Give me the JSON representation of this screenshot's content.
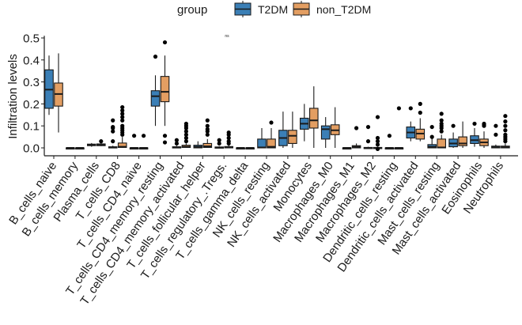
{
  "chart_data": {
    "type": "boxplot",
    "title": "",
    "xlabel": "",
    "ylabel": "Infiltration levels",
    "ylim": [
      -0.03,
      0.51
    ],
    "yticks": [
      0.0,
      0.1,
      0.2,
      0.3,
      0.4,
      0.5
    ],
    "ytick_labels": [
      "0.0",
      "0.1",
      "0.2",
      "0.3",
      "0.4",
      "0.5"
    ],
    "grid": false,
    "legend": {
      "title": "group",
      "placement": "top",
      "entries": [
        {
          "name": "T2DM",
          "color": "#3B7FB6"
        },
        {
          "name": "non_T2DM",
          "color": "#E39E62"
        }
      ]
    },
    "annotation": "ns",
    "categories": [
      "B_cells_naive",
      "B_cells_memory",
      "Plasma_cells",
      "T_cells_CD8",
      "T_cells_CD4_naive",
      "T_cells_CD4_memory_resting",
      "T_cells_CD4_memory_activated",
      "T_cells_follicular_helper",
      "T_cells_regulatory_.Tregs.",
      "T_cells_gamma_delta",
      "NK_cells_resting",
      "NK_cells_activated",
      "Monocytes",
      "Macrophages_M0",
      "Macrophages_M1",
      "Macrophages_M2",
      "Dendritic_cells_resting",
      "Dendritic_cells_activated",
      "Mast_cells_resting",
      "Mast_cells_activated",
      "Eosinophils",
      "Neutrophils"
    ],
    "series": [
      {
        "name": "T2DM",
        "boxes": [
          {
            "min": 0.15,
            "q1": 0.18,
            "median": 0.265,
            "q3": 0.355,
            "max": 0.42,
            "outliers": []
          },
          {
            "min": 0.0,
            "q1": 0.0,
            "median": 0.0,
            "q3": 0.0,
            "max": 0.0,
            "outliers": []
          },
          {
            "min": 0.005,
            "q1": 0.01,
            "median": 0.013,
            "q3": 0.017,
            "max": 0.022,
            "outliers": []
          },
          {
            "min": 0.0,
            "q1": 0.0,
            "median": 0.002,
            "q3": 0.005,
            "max": 0.01,
            "outliers": [
              0.03,
              0.075,
              0.09,
              0.095,
              0.125
            ]
          },
          {
            "min": 0.0,
            "q1": 0.0,
            "median": 0.0,
            "q3": 0.0,
            "max": 0.0,
            "outliers": [
              0.055
            ]
          },
          {
            "min": 0.1,
            "q1": 0.19,
            "median": 0.235,
            "q3": 0.26,
            "max": 0.33,
            "outliers": [
              0.415
            ]
          },
          {
            "min": 0.0,
            "q1": 0.0,
            "median": 0.002,
            "q3": 0.005,
            "max": 0.01,
            "outliers": [
              0.02,
              0.035
            ]
          },
          {
            "min": 0.0,
            "q1": 0.0,
            "median": 0.005,
            "q3": 0.012,
            "max": 0.03,
            "outliers": []
          },
          {
            "min": 0.0,
            "q1": 0.0,
            "median": 0.002,
            "q3": 0.004,
            "max": 0.008,
            "outliers": [
              0.02,
              0.035
            ]
          },
          {
            "min": 0.0,
            "q1": 0.0,
            "median": 0.0,
            "q3": 0.0,
            "max": 0.0,
            "outliers": []
          },
          {
            "min": 0.0,
            "q1": 0.0,
            "median": 0.002,
            "q3": 0.04,
            "max": 0.09,
            "outliers": []
          },
          {
            "min": 0.0,
            "q1": 0.01,
            "median": 0.045,
            "q3": 0.08,
            "max": 0.165,
            "outliers": []
          },
          {
            "min": 0.03,
            "q1": 0.085,
            "median": 0.11,
            "q3": 0.135,
            "max": 0.2,
            "outliers": []
          },
          {
            "min": 0.0,
            "q1": 0.04,
            "median": 0.085,
            "q3": 0.1,
            "max": 0.14,
            "outliers": []
          },
          {
            "min": 0.0,
            "q1": 0.0,
            "median": 0.0,
            "q3": 0.0,
            "max": 0.0,
            "outliers": []
          },
          {
            "min": 0.0,
            "q1": 0.0,
            "median": 0.0,
            "q3": 0.002,
            "max": 0.005,
            "outliers": [
              0.03,
              0.095
            ]
          },
          {
            "min": 0.0,
            "q1": 0.0,
            "median": 0.0,
            "q3": 0.0,
            "max": 0.0,
            "outliers": [
              0.055
            ]
          },
          {
            "min": 0.03,
            "q1": 0.045,
            "median": 0.07,
            "q3": 0.095,
            "max": 0.12,
            "outliers": [
              0.18
            ]
          },
          {
            "min": 0.0,
            "q1": 0.0,
            "median": 0.005,
            "q3": 0.015,
            "max": 0.045,
            "outliers": [
              0.05,
              0.095
            ]
          },
          {
            "min": 0.0,
            "q1": 0.005,
            "median": 0.02,
            "q3": 0.04,
            "max": 0.07,
            "outliers": [
              0.1
            ]
          },
          {
            "min": 0.005,
            "q1": 0.02,
            "median": 0.035,
            "q3": 0.055,
            "max": 0.09,
            "outliers": [
              0.11
            ]
          },
          {
            "min": 0.0,
            "q1": 0.0,
            "median": 0.003,
            "q3": 0.008,
            "max": 0.015,
            "outliers": [
              0.06,
              0.1
            ]
          }
        ]
      },
      {
        "name": "non_T2DM",
        "boxes": [
          {
            "min": 0.07,
            "q1": 0.19,
            "median": 0.245,
            "q3": 0.295,
            "max": 0.43,
            "outliers": []
          },
          {
            "min": 0.0,
            "q1": 0.0,
            "median": 0.0,
            "q3": 0.0,
            "max": 0.0,
            "outliers": []
          },
          {
            "min": 0.008,
            "q1": 0.01,
            "median": 0.013,
            "q3": 0.018,
            "max": 0.025,
            "outliers": [
              0.03
            ]
          },
          {
            "min": 0.0,
            "q1": 0.002,
            "median": 0.005,
            "q3": 0.022,
            "max": 0.05,
            "outliers": [
              0.06,
              0.07,
              0.08,
              0.09,
              0.1,
              0.125,
              0.14,
              0.155,
              0.17,
              0.185
            ]
          },
          {
            "min": 0.0,
            "q1": 0.0,
            "median": 0.0,
            "q3": 0.0,
            "max": 0.0,
            "outliers": [
              0.055
            ]
          },
          {
            "min": 0.1,
            "q1": 0.21,
            "median": 0.255,
            "q3": 0.325,
            "max": 0.42,
            "outliers": [
              0.48,
              0.055,
              0.025
            ]
          },
          {
            "min": 0.0,
            "q1": 0.002,
            "median": 0.005,
            "q3": 0.012,
            "max": 0.02,
            "outliers": [
              0.03,
              0.045,
              0.06,
              0.075,
              0.09,
              0.1,
              0.11
            ]
          },
          {
            "min": 0.0,
            "q1": 0.002,
            "median": 0.007,
            "q3": 0.02,
            "max": 0.04,
            "outliers": [
              0.06,
              0.075,
              0.085,
              0.1,
              0.125
            ]
          },
          {
            "min": 0.0,
            "q1": 0.0,
            "median": 0.003,
            "q3": 0.006,
            "max": 0.012,
            "outliers": [
              0.02,
              0.03,
              0.045,
              0.06,
              0.07
            ]
          },
          {
            "min": 0.0,
            "q1": 0.0,
            "median": 0.0,
            "q3": 0.0,
            "max": 0.0,
            "outliers": []
          },
          {
            "min": 0.0,
            "q1": 0.0,
            "median": 0.005,
            "q3": 0.04,
            "max": 0.09,
            "outliers": [
              0.115
            ]
          },
          {
            "min": 0.0,
            "q1": 0.02,
            "median": 0.055,
            "q3": 0.08,
            "max": 0.165,
            "outliers": []
          },
          {
            "min": 0.0,
            "q1": 0.09,
            "median": 0.125,
            "q3": 0.18,
            "max": 0.28,
            "outliers": []
          },
          {
            "min": 0.0,
            "q1": 0.06,
            "median": 0.08,
            "q3": 0.105,
            "max": 0.185,
            "outliers": []
          },
          {
            "min": 0.0,
            "q1": 0.0,
            "median": 0.005,
            "q3": 0.01,
            "max": 0.02,
            "outliers": [
              0.09
            ]
          },
          {
            "min": 0.0,
            "q1": 0.0,
            "median": 0.0,
            "q3": 0.002,
            "max": 0.005,
            "outliers": [
              -0.005,
              0.015,
              0.03,
              0.045,
              0.14
            ]
          },
          {
            "min": 0.0,
            "q1": 0.0,
            "median": 0.0,
            "q3": 0.0,
            "max": 0.0,
            "outliers": [
              0.18
            ]
          },
          {
            "min": 0.03,
            "q1": 0.04,
            "median": 0.065,
            "q3": 0.085,
            "max": 0.135,
            "outliers": [
              0.16,
              0.2
            ]
          },
          {
            "min": 0.0,
            "q1": 0.0,
            "median": 0.002,
            "q3": 0.04,
            "max": 0.06,
            "outliers": [
              0.075,
              0.09,
              0.1,
              0.11,
              0.125,
              0.155
            ]
          },
          {
            "min": 0.0,
            "q1": 0.01,
            "median": 0.02,
            "q3": 0.05,
            "max": 0.12,
            "outliers": []
          },
          {
            "min": 0.0,
            "q1": 0.01,
            "median": 0.025,
            "q3": 0.04,
            "max": 0.075,
            "outliers": [
              0.1,
              0.105,
              0.11
            ]
          },
          {
            "min": 0.0,
            "q1": 0.0,
            "median": 0.003,
            "q3": 0.008,
            "max": 0.02,
            "outliers": [
              0.03,
              0.04,
              0.05,
              0.06,
              0.08,
              0.1,
              0.12,
              0.145
            ]
          }
        ]
      }
    ]
  }
}
